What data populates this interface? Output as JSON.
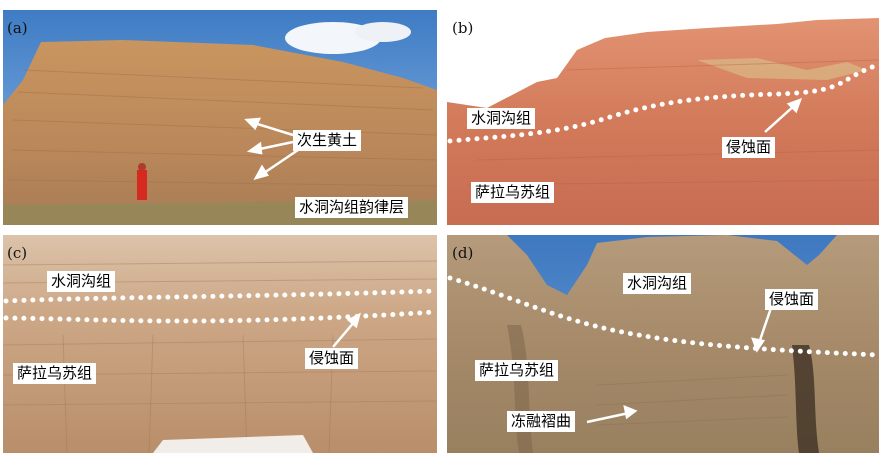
{
  "panels": {
    "a": {
      "label": "(a)",
      "tags": {
        "secondary_loess": "次生黄土",
        "rhythm_layer": "水洞沟组韵律层"
      }
    },
    "b": {
      "label": "(b)",
      "tags": {
        "shuidonggou": "水洞沟组",
        "erosion": "侵蚀面",
        "salawusu": "萨拉乌苏组"
      }
    },
    "c": {
      "label": "(c)",
      "tags": {
        "shuidonggou": "水洞沟组",
        "erosion": "侵蚀面",
        "salawusu": "萨拉乌苏组"
      }
    },
    "d": {
      "label": "(d)",
      "tags": {
        "shuidonggou": "水洞沟组",
        "erosion": "侵蚀面",
        "salawusu": "萨拉乌苏组",
        "cryoturbation": "冻融褶曲"
      }
    }
  },
  "colors": {
    "sky": "#4f86c6",
    "loess": "#c08c5c",
    "cliff_b": "#d4785a",
    "cliff_c": "#c9a07c",
    "cliff_d": "#a58c6c",
    "marker_white": "#ffffff"
  }
}
